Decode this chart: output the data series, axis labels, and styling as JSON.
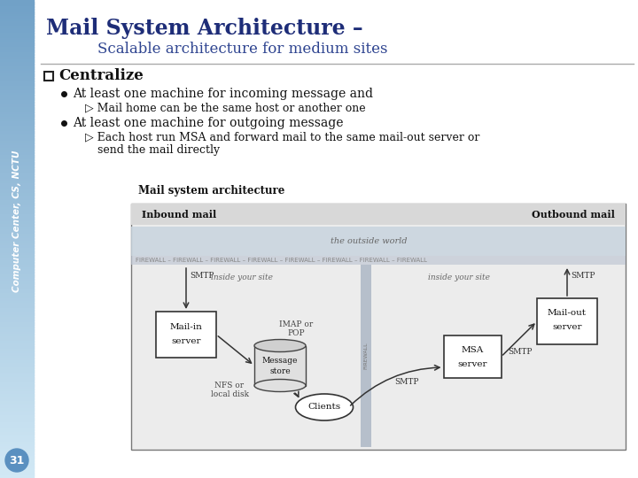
{
  "title": "Mail System Architecture –",
  "subtitle": "Scalable architecture for medium sites",
  "sidebar_text": "Computer Center, CS, NCTU",
  "page_number": "31",
  "title_color": "#1e2d78",
  "subtitle_color": "#2e4490",
  "bg_color": "#ffffff",
  "text_color": "#111111",
  "bullet_heading": "Centralize",
  "bullet1": "At least one machine for incoming message and",
  "sub_bullet1": "Mail home can be the same host or another one",
  "bullet2": "At least one machine for outgoing message",
  "sub_bullet2a": "Each host run MSA and forward mail to the same mail-out server or",
  "sub_bullet2b": "send the mail directly",
  "diagram_title": "Mail system architecture",
  "diagram_label_left": "Inbound mail",
  "diagram_label_right": "Outbound mail",
  "sidebar_colors": [
    "#d0e8f5",
    "#b8d8ef",
    "#a0c8e8",
    "#88b8e0",
    "#6aa0d0",
    "#5090c0",
    "#4080b8"
  ],
  "page_circle_color": "#5a90c0"
}
